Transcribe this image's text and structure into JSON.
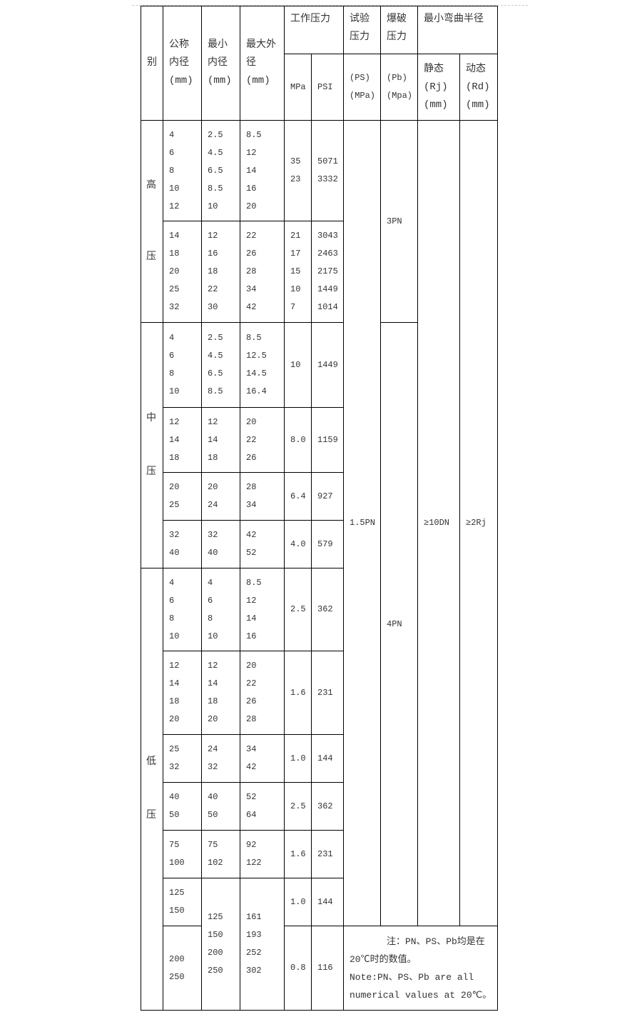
{
  "header": {
    "category": "别",
    "nominal_id": "公称\n内径\n(mm)",
    "min_id": "最小\n内径\n(mm)",
    "max_od": "最大外\n径\n(mm)",
    "working_pressure": "工作压力",
    "test_pressure": "试验\n压力",
    "burst_pressure": "爆破\n压力",
    "min_bend_radius": "最小弯曲半径",
    "mpa": "MPa",
    "psi": "PSI",
    "test_unit": "(PS)\n(MPa)",
    "burst_unit": "(Pb)\n(Mpa)",
    "static": "静态\n(Rj)\n(mm)",
    "dynamic": "动态\n(Rd)\n(mm)"
  },
  "categories": {
    "high": "高\n\n\n\n压",
    "medium": "中\n\n\n压",
    "low": "低\n\n\n压"
  },
  "rows": [
    {
      "nominal": "4\n6\n8\n10\n12",
      "min_id": "2.5\n4.5\n6.5\n8.5\n10",
      "max_od": "8.5\n12\n14\n16\n20",
      "mpa": "35\n23",
      "psi": "5071\n3332"
    },
    {
      "nominal": "14\n18\n20\n25\n32",
      "min_id": "12\n16\n18\n22\n30",
      "max_od": "22\n26\n28\n34\n42",
      "mpa": "21\n17\n15\n10\n7",
      "psi": "3043\n2463\n2175\n1449\n1014"
    },
    {
      "nominal": "4\n6\n8\n10",
      "min_id": "2.5\n4.5\n6.5\n8.5",
      "max_od": "8.5\n12.5\n14.5\n16.4",
      "mpa": "10",
      "psi": "1449"
    },
    {
      "nominal": "12\n14\n18",
      "min_id": "12\n14\n18",
      "max_od": "20\n22\n26",
      "mpa": "8.0",
      "psi": "1159"
    },
    {
      "nominal": "20\n25",
      "min_id": "20\n24",
      "max_od": "28\n34",
      "mpa": "6.4",
      "psi": "927"
    },
    {
      "nominal": "32\n40",
      "min_id": "32\n40",
      "max_od": "42\n52",
      "mpa": "4.0",
      "psi": "579"
    },
    {
      "nominal": "4\n6\n8\n10",
      "min_id": "4\n6\n8\n10",
      "max_od": "8.5\n12\n14\n16",
      "mpa": "2.5",
      "psi": "362"
    },
    {
      "nominal": "12\n14\n18\n20",
      "min_id": "12\n14\n18\n20",
      "max_od": "20\n22\n26\n28",
      "mpa": "1.6",
      "psi": "231"
    },
    {
      "nominal": "25\n32",
      "min_id": "24\n32",
      "max_od": "34\n42",
      "mpa": "1.0",
      "psi": "144"
    },
    {
      "nominal": "40\n50",
      "min_id": "40\n50",
      "max_od": "52\n64",
      "mpa": "2.5",
      "psi": "362"
    },
    {
      "nominal": "75\n100",
      "min_id": "75\n102",
      "max_od": "92\n122",
      "mpa": "1.6",
      "psi": "231"
    },
    {
      "nominal": "125\n150",
      "min_id": "125\n150\n200\n250",
      "max_od": "161\n193\n252\n302",
      "mpa": "1.0",
      "psi": "144"
    },
    {
      "nominal": "200\n250",
      "mpa": "0.8",
      "psi": "116"
    }
  ],
  "spanning": {
    "test_pressure": "1.5PN",
    "burst_high": "3PN",
    "burst_low": "4PN",
    "static_radius": "≥10DN",
    "dynamic_radius": "≥2Rj"
  },
  "note": "　　　　注：PN、PS、Pb均是在20℃时的数值。\nNote:PN、PS、Pb are all numerical values at 20℃。"
}
